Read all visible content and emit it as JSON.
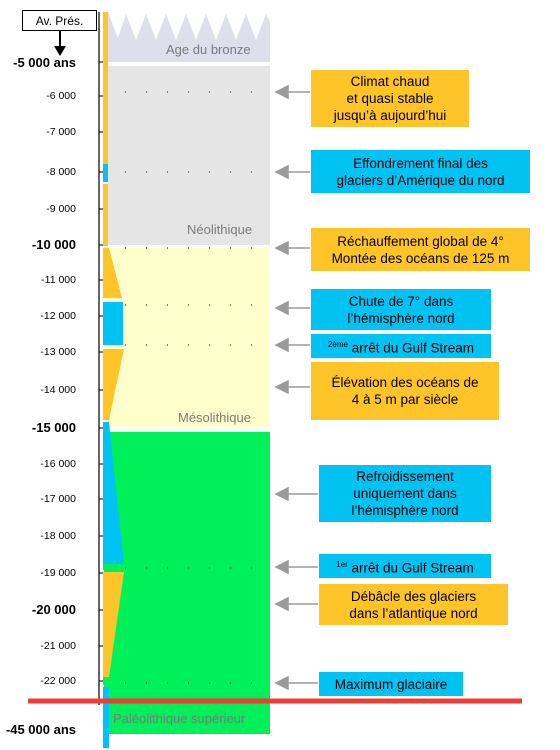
{
  "header": {
    "ref_label": "Av. Prés."
  },
  "y_axis": {
    "ticks": [
      {
        "label": "-5 000 ans",
        "major": true
      },
      {
        "label": "-6 000",
        "major": false
      },
      {
        "label": "-7 000",
        "major": false
      },
      {
        "label": "-8 000",
        "major": false
      },
      {
        "label": "-9 000",
        "major": false
      },
      {
        "label": "-10 000",
        "major": true
      },
      {
        "label": "-11 000",
        "major": false
      },
      {
        "label": "-12 000",
        "major": false
      },
      {
        "label": "-13 000",
        "major": false
      },
      {
        "label": "-14 000",
        "major": false
      },
      {
        "label": "-15 000",
        "major": true
      },
      {
        "label": "-16 000",
        "major": false
      },
      {
        "label": "-17 000",
        "major": false
      },
      {
        "label": "-18 000",
        "major": false
      },
      {
        "label": "-19 000",
        "major": false
      },
      {
        "label": "-20 000",
        "major": true
      },
      {
        "label": "-21 000",
        "major": false
      },
      {
        "label": "-22 000",
        "major": false
      }
    ],
    "bottom_label": "-45 000 ans"
  },
  "periods": {
    "bronze": "Age du bronze",
    "neolithique": "Néolithique",
    "mesolithique": "Mésolithique",
    "paleolithique": "Paléolithique supérieur"
  },
  "events": [
    {
      "text": "Climat chaud\net quasi stable\njusqu’à aujourd’hui",
      "color": "#ffc428"
    },
    {
      "text": "Effondrement final des\nglaciers d’Amérique du nord",
      "color": "#00c3f4"
    },
    {
      "text": "Réchauffement global de  4°\nMontée des océans de 125 m",
      "color": "#ffc428"
    },
    {
      "text": "Chute de 7° dans\nl’hémisphère nord",
      "color": "#00c3f4"
    },
    {
      "text": "arrêt du Gulf Stream",
      "sup": "2ème",
      "color": "#00c3f4"
    },
    {
      "text": "Élévation des océans de\n4 à 5 m par siècle",
      "color": "#ffc428"
    },
    {
      "text": "Refroidissement\nuniquement dans\nl’hémisphère nord",
      "color": "#00c3f4"
    },
    {
      "text": "arrêt du Gulf Stream",
      "sup": "1er",
      "color": "#00c3f4"
    },
    {
      "text": "Débâcle des glaciers\ndans l’atlantique nord",
      "color": "#ffc428"
    },
    {
      "text": "Maximum glaciaire",
      "color": "#00c3f4"
    }
  ],
  "colors": {
    "warm": "#ffc428",
    "cold": "#00c3f4",
    "bronze_band": "#dde0ea",
    "neolithic_band": "#e5e5e5",
    "mesolithic_band": "#ffffcc",
    "paleolithic_band": "#00f05a",
    "boundary_line": "#f03c32"
  }
}
